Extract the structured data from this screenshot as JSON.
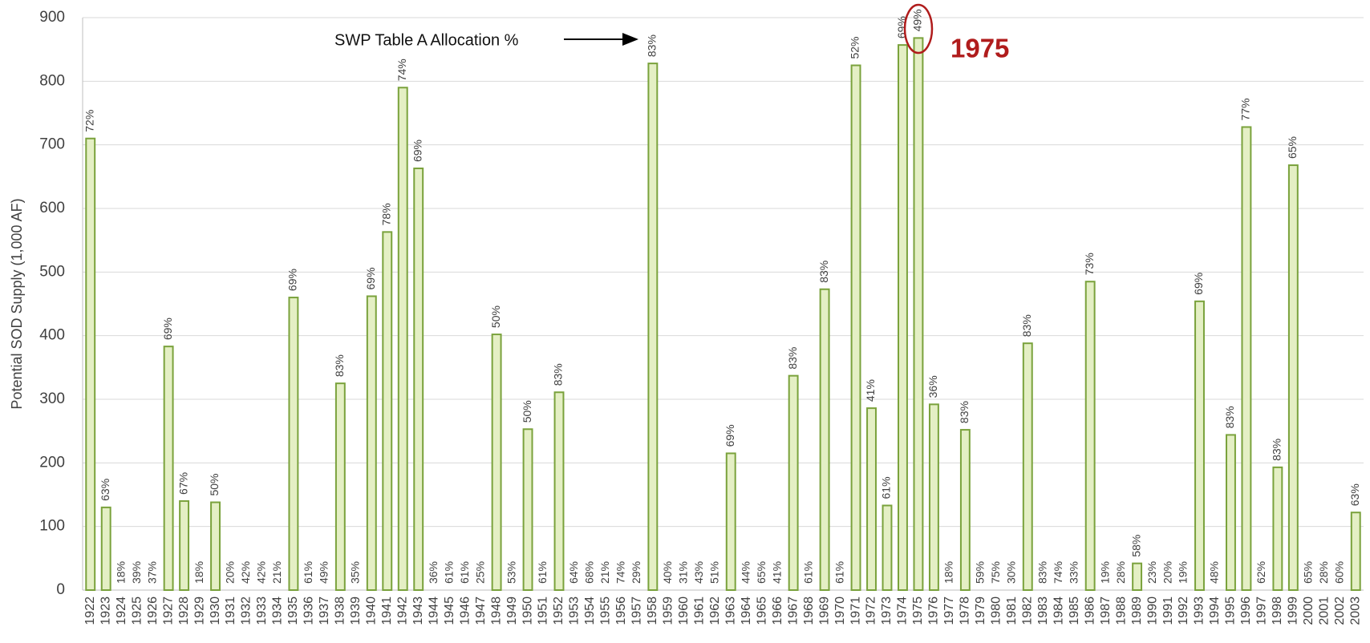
{
  "chart_data": {
    "type": "bar",
    "y_label": "Potential SOD Supply (1,000 AF)",
    "annotation": "SWP Table A Allocation %",
    "highlight_label": "1975",
    "color": "#e4efc4",
    "edge_color": "#7aa23c",
    "grid": true,
    "ylim": [
      0,
      900
    ],
    "yticks": [
      0,
      100,
      200,
      300,
      400,
      500,
      600,
      700,
      800,
      900
    ],
    "categories": [
      "1922",
      "1923",
      "1924",
      "1925",
      "1926",
      "1927",
      "1928",
      "1929",
      "1930",
      "1931",
      "1932",
      "1933",
      "1934",
      "1935",
      "1936",
      "1937",
      "1938",
      "1939",
      "1940",
      "1941",
      "1942",
      "1943",
      "1944",
      "1945",
      "1946",
      "1947",
      "1948",
      "1949",
      "1950",
      "1951",
      "1952",
      "1953",
      "1954",
      "1955",
      "1956",
      "1957",
      "1958",
      "1959",
      "1960",
      "1961",
      "1962",
      "1963",
      "1964",
      "1965",
      "1966",
      "1967",
      "1968",
      "1969",
      "1970",
      "1971",
      "1972",
      "1973",
      "1974",
      "1975",
      "1976",
      "1977",
      "1978",
      "1979",
      "1980",
      "1981",
      "1982",
      "1983",
      "1984",
      "1985",
      "1986",
      "1987",
      "1988",
      "1989",
      "1990",
      "1991",
      "1992",
      "1993",
      "1994",
      "1995",
      "1996",
      "1997",
      "1998",
      "1999",
      "2000",
      "2001",
      "2002",
      "2003"
    ],
    "values": [
      710,
      130,
      0,
      0,
      0,
      383,
      140,
      0,
      138,
      0,
      0,
      0,
      0,
      460,
      0,
      0,
      325,
      0,
      462,
      563,
      790,
      663,
      0,
      0,
      0,
      0,
      402,
      0,
      253,
      0,
      311,
      0,
      0,
      0,
      0,
      0,
      828,
      0,
      0,
      0,
      0,
      215,
      0,
      0,
      0,
      337,
      0,
      473,
      0,
      825,
      286,
      133,
      857,
      868,
      292,
      0,
      252,
      0,
      0,
      0,
      388,
      0,
      0,
      0,
      485,
      0,
      0,
      42,
      0,
      0,
      0,
      454,
      0,
      244,
      728,
      0,
      193,
      668,
      0,
      0,
      0,
      122
    ],
    "allocation_labels": [
      "72%",
      "63%",
      "18%",
      "39%",
      "37%",
      "69%",
      "67%",
      "18%",
      "50%",
      "20%",
      "42%",
      "42%",
      "21%",
      "69%",
      "61%",
      "49%",
      "83%",
      "35%",
      "69%",
      "78%",
      "74%",
      "69%",
      "36%",
      "61%",
      "61%",
      "25%",
      "50%",
      "53%",
      "50%",
      "61%",
      "83%",
      "64%",
      "68%",
      "21%",
      "74%",
      "29%",
      "83%",
      "40%",
      "31%",
      "43%",
      "51%",
      "69%",
      "44%",
      "65%",
      "41%",
      "83%",
      "61%",
      "83%",
      "61%",
      "52%",
      "41%",
      "61%",
      "69%",
      "49%",
      "36%",
      "18%",
      "83%",
      "59%",
      "75%",
      "30%",
      "83%",
      "83%",
      "74%",
      "33%",
      "73%",
      "19%",
      "28%",
      "58%",
      "23%",
      "20%",
      "19%",
      "69%",
      "48%",
      "83%",
      "77%",
      "62%",
      "83%",
      "65%",
      "65%",
      "28%",
      "60%",
      "63%"
    ]
  }
}
